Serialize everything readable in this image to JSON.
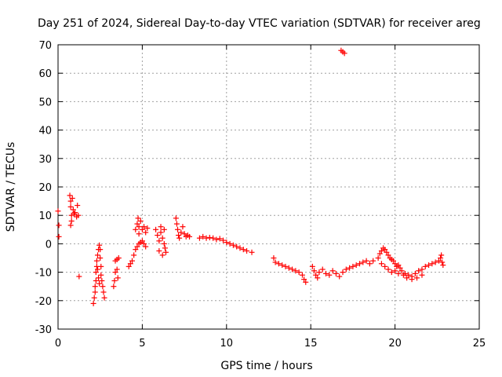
{
  "chart_data": {
    "type": "scatter",
    "title": "Day 251 of 2024, Sidereal Day-to-day VTEC variation (SDTVAR) for receiver areg",
    "xlabel": "GPS time / hours",
    "ylabel": "SDTVAR / TECUs",
    "xlim": [
      0,
      25
    ],
    "ylim": [
      -30,
      70
    ],
    "xticks": [
      0,
      5,
      10,
      15,
      20,
      25
    ],
    "yticks": [
      -30,
      -20,
      -10,
      0,
      10,
      20,
      30,
      40,
      50,
      60,
      70
    ],
    "grid": true,
    "marker": "+",
    "marker_color": "#ff0000",
    "series": [
      {
        "name": "SDTVAR",
        "points": [
          [
            0.0,
            11.5
          ],
          [
            0.05,
            6.5
          ],
          [
            0.05,
            2.5
          ],
          [
            0.7,
            17
          ],
          [
            0.75,
            15
          ],
          [
            0.75,
            13
          ],
          [
            0.8,
            10
          ],
          [
            0.8,
            8
          ],
          [
            0.75,
            6.5
          ],
          [
            0.85,
            16
          ],
          [
            0.9,
            12
          ],
          [
            0.95,
            10.5
          ],
          [
            1.0,
            11
          ],
          [
            1.1,
            9.5
          ],
          [
            1.15,
            13.5
          ],
          [
            1.2,
            10
          ],
          [
            1.25,
            -11.5
          ],
          [
            2.1,
            -21
          ],
          [
            2.15,
            -19
          ],
          [
            2.2,
            -17
          ],
          [
            2.2,
            -15
          ],
          [
            2.25,
            -13
          ],
          [
            2.25,
            -10
          ],
          [
            2.3,
            -8
          ],
          [
            2.3,
            -6
          ],
          [
            2.35,
            -4
          ],
          [
            2.4,
            -2
          ],
          [
            2.45,
            -0.5
          ],
          [
            2.5,
            -2
          ],
          [
            2.5,
            -5
          ],
          [
            2.55,
            -8
          ],
          [
            2.55,
            -11
          ],
          [
            2.6,
            -13
          ],
          [
            2.65,
            -15
          ],
          [
            2.7,
            -17
          ],
          [
            2.75,
            -19
          ],
          [
            2.4,
            -12
          ],
          [
            2.45,
            -14
          ],
          [
            2.35,
            -9
          ],
          [
            3.3,
            -15
          ],
          [
            3.35,
            -13
          ],
          [
            3.4,
            -10
          ],
          [
            3.5,
            -9
          ],
          [
            3.55,
            -12
          ],
          [
            3.4,
            -6
          ],
          [
            3.5,
            -5.5
          ],
          [
            3.6,
            -5
          ],
          [
            4.2,
            -8
          ],
          [
            4.3,
            -7
          ],
          [
            4.4,
            -6
          ],
          [
            4.5,
            -4
          ],
          [
            4.6,
            -2
          ],
          [
            4.7,
            -1
          ],
          [
            4.8,
            0
          ],
          [
            4.9,
            0.5
          ],
          [
            5.0,
            1
          ],
          [
            5.1,
            0
          ],
          [
            5.2,
            -1
          ],
          [
            4.6,
            5
          ],
          [
            4.7,
            7
          ],
          [
            4.75,
            9
          ],
          [
            4.8,
            6
          ],
          [
            4.9,
            8
          ],
          [
            5.0,
            5
          ],
          [
            5.1,
            6
          ],
          [
            5.2,
            4
          ],
          [
            5.3,
            5.5
          ],
          [
            4.8,
            3.5
          ],
          [
            5.8,
            5
          ],
          [
            5.9,
            3
          ],
          [
            6.0,
            1
          ],
          [
            6.1,
            4
          ],
          [
            6.2,
            2
          ],
          [
            6.3,
            0
          ],
          [
            6.35,
            -1.5
          ],
          [
            6.4,
            -3
          ],
          [
            6.2,
            -4
          ],
          [
            6.0,
            -2.5
          ],
          [
            6.1,
            6
          ],
          [
            6.3,
            5
          ],
          [
            7.0,
            9
          ],
          [
            7.05,
            7
          ],
          [
            7.1,
            5
          ],
          [
            7.15,
            3
          ],
          [
            7.2,
            2
          ],
          [
            7.3,
            4
          ],
          [
            7.4,
            6
          ],
          [
            7.5,
            3.5
          ],
          [
            7.6,
            2.5
          ],
          [
            7.7,
            3
          ],
          [
            7.8,
            2.5
          ],
          [
            8.4,
            2
          ],
          [
            8.6,
            2.5
          ],
          [
            8.8,
            2
          ],
          [
            9.0,
            2.2
          ],
          [
            9.2,
            2
          ],
          [
            9.4,
            1.5
          ],
          [
            9.6,
            1.8
          ],
          [
            9.8,
            1.2
          ],
          [
            10.0,
            0.5
          ],
          [
            10.2,
            0
          ],
          [
            10.4,
            -0.5
          ],
          [
            10.6,
            -1
          ],
          [
            10.8,
            -1.5
          ],
          [
            11.0,
            -2
          ],
          [
            11.2,
            -2.5
          ],
          [
            11.5,
            -3
          ],
          [
            12.8,
            -5
          ],
          [
            12.9,
            -6.5
          ],
          [
            13.1,
            -7
          ],
          [
            13.3,
            -7.5
          ],
          [
            13.5,
            -8
          ],
          [
            13.7,
            -8.5
          ],
          [
            13.9,
            -9
          ],
          [
            14.1,
            -9.5
          ],
          [
            14.3,
            -10
          ],
          [
            14.5,
            -11
          ],
          [
            14.6,
            -12.5
          ],
          [
            14.7,
            -13.5
          ],
          [
            15.1,
            -8
          ],
          [
            15.2,
            -9.5
          ],
          [
            15.3,
            -11
          ],
          [
            15.4,
            -12
          ],
          [
            15.5,
            -10
          ],
          [
            15.7,
            -9
          ],
          [
            15.9,
            -10.5
          ],
          [
            16.1,
            -11
          ],
          [
            16.3,
            -9.5
          ],
          [
            16.5,
            -10.5
          ],
          [
            16.7,
            -11.5
          ],
          [
            16.9,
            -10
          ],
          [
            17.1,
            -9
          ],
          [
            17.3,
            -8.5
          ],
          [
            17.5,
            -8
          ],
          [
            17.7,
            -7.5
          ],
          [
            17.9,
            -7
          ],
          [
            18.1,
            -6.5
          ],
          [
            18.3,
            -6
          ],
          [
            18.5,
            -7
          ],
          [
            18.7,
            -6
          ],
          [
            16.8,
            68
          ],
          [
            16.9,
            67.5
          ],
          [
            17.0,
            67
          ],
          [
            19.0,
            -5
          ],
          [
            19.1,
            -3.5
          ],
          [
            19.2,
            -2.5
          ],
          [
            19.3,
            -1.5
          ],
          [
            19.4,
            -2
          ],
          [
            19.5,
            -3
          ],
          [
            19.6,
            -4
          ],
          [
            19.7,
            -5
          ],
          [
            19.8,
            -5.5
          ],
          [
            19.9,
            -6
          ],
          [
            20.0,
            -7
          ],
          [
            20.1,
            -8
          ],
          [
            20.2,
            -7.5
          ],
          [
            20.3,
            -8.5
          ],
          [
            20.4,
            -9.5
          ],
          [
            20.6,
            -10.5
          ],
          [
            20.8,
            -11
          ],
          [
            21.0,
            -11.5
          ],
          [
            21.2,
            -10.5
          ],
          [
            21.4,
            -9.5
          ],
          [
            21.6,
            -9
          ],
          [
            21.8,
            -8
          ],
          [
            22.0,
            -7.5
          ],
          [
            22.2,
            -7
          ],
          [
            22.4,
            -6.5
          ],
          [
            22.6,
            -6
          ],
          [
            22.7,
            -5
          ],
          [
            22.75,
            -4
          ],
          [
            22.8,
            -6.5
          ],
          [
            22.85,
            -7.5
          ],
          [
            19.2,
            -7
          ],
          [
            19.4,
            -8
          ],
          [
            19.6,
            -9
          ],
          [
            19.8,
            -10
          ],
          [
            20.0,
            -9.5
          ],
          [
            20.2,
            -10.5
          ],
          [
            20.5,
            -11
          ],
          [
            20.7,
            -12
          ],
          [
            21.0,
            -12.5
          ],
          [
            21.3,
            -12
          ],
          [
            21.6,
            -11
          ]
        ]
      }
    ]
  }
}
